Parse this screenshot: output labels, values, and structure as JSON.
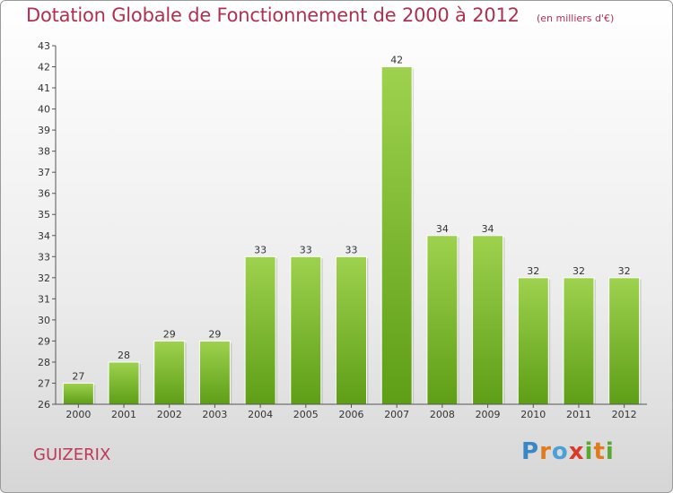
{
  "page": {
    "commune": "GUIZERIX",
    "logo_text": "Proxiti"
  },
  "colors": {
    "title": "#b03050",
    "bar_top": "#9ed24e",
    "bar_bottom": "#5e9e16"
  },
  "chart_data": {
    "type": "bar",
    "title": "Dotation Globale de Fonctionnement de 2000 à 2012",
    "subtitle": "(en milliers d'€)",
    "categories": [
      "2000",
      "2001",
      "2002",
      "2003",
      "2004",
      "2005",
      "2006",
      "2007",
      "2008",
      "2009",
      "2010",
      "2011",
      "2012"
    ],
    "values": [
      27,
      28,
      29,
      29,
      33,
      33,
      33,
      42,
      34,
      34,
      32,
      32,
      32
    ],
    "ylim": [
      26,
      43
    ],
    "yticks": [
      26,
      27,
      28,
      29,
      30,
      31,
      32,
      33,
      34,
      35,
      36,
      37,
      38,
      39,
      40,
      41,
      42,
      43
    ],
    "grid": false,
    "legend": "none",
    "data_labels": true
  }
}
